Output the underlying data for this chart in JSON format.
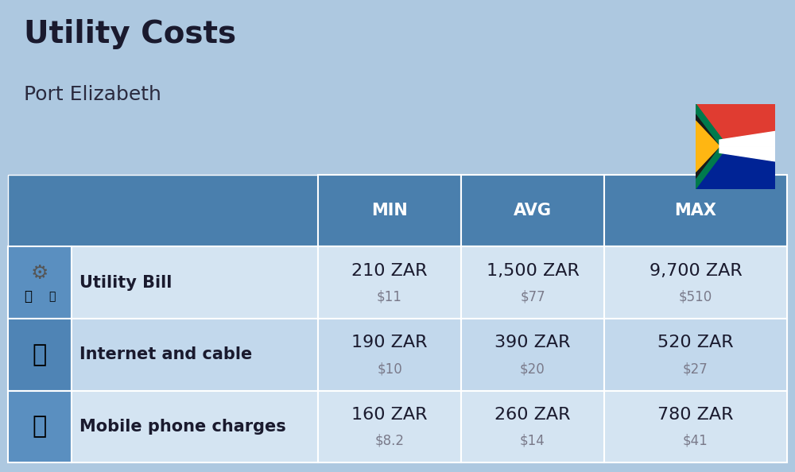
{
  "title": "Utility Costs",
  "subtitle": "Port Elizabeth",
  "background_color": "#adc8e0",
  "header_bg_color": "#4a7fad",
  "header_text_color": "#ffffff",
  "row_bg_colors": [
    "#c8dced",
    "#b8d0e8"
  ],
  "icon_col_bg": "#5a8ab8",
  "label_col_bg": "#dce8f2",
  "columns": [
    "MIN",
    "AVG",
    "MAX"
  ],
  "rows": [
    {
      "label": "Utility Bill",
      "icon": "utility",
      "min_zar": "210 ZAR",
      "min_usd": "$11",
      "avg_zar": "1,500 ZAR",
      "avg_usd": "$77",
      "max_zar": "9,700 ZAR",
      "max_usd": "$510"
    },
    {
      "label": "Internet and cable",
      "icon": "internet",
      "min_zar": "190 ZAR",
      "min_usd": "$10",
      "avg_zar": "390 ZAR",
      "avg_usd": "$20",
      "max_zar": "520 ZAR",
      "max_usd": "$27"
    },
    {
      "label": "Mobile phone charges",
      "icon": "mobile",
      "min_zar": "160 ZAR",
      "min_usd": "$8.2",
      "avg_zar": "260 ZAR",
      "avg_usd": "$14",
      "max_zar": "780 ZAR",
      "max_usd": "$41"
    }
  ],
  "zar_fontsize": 16,
  "usd_fontsize": 12,
  "label_fontsize": 15,
  "header_fontsize": 15,
  "title_fontsize": 28,
  "subtitle_fontsize": 18
}
